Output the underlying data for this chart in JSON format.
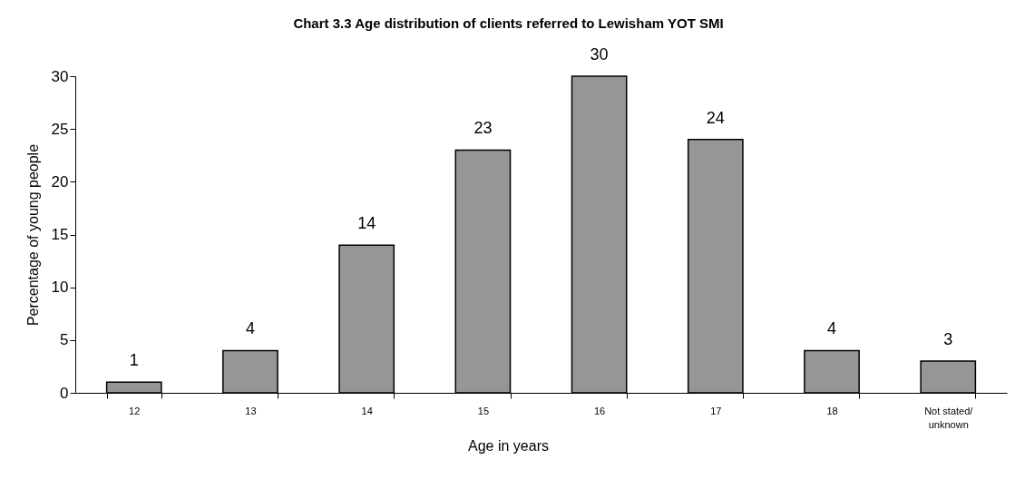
{
  "chart_data": {
    "type": "bar",
    "title": "Chart 3.3  Age distribution of clients referred to Lewisham YOT SMI",
    "xlabel": "Age in years",
    "ylabel": "Percentage of young people",
    "categories": [
      "12",
      "13",
      "14",
      "15",
      "16",
      "17",
      "18",
      "Not stated/\nunknown"
    ],
    "values": [
      1,
      4,
      14,
      23,
      30,
      24,
      4,
      3
    ],
    "color": "#969696",
    "ylim": [
      0,
      30
    ],
    "yticks": [
      0,
      5,
      10,
      15,
      20,
      25,
      30
    ],
    "data_labels": true
  }
}
